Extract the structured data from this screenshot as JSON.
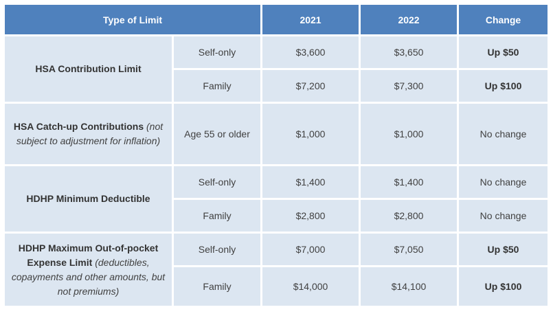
{
  "header": {
    "type_of_limit": "Type of Limit",
    "year1": "2021",
    "year2": "2022",
    "change": "Change"
  },
  "rows": {
    "hsa": {
      "label": "HSA Contribution Limit",
      "self": {
        "coverage": "Self-only",
        "y1": "$3,600",
        "y2": "$3,650",
        "change": "Up $50"
      },
      "family": {
        "coverage": "Family",
        "y1": "$7,200",
        "y2": "$7,300",
        "change": "Up $100"
      }
    },
    "catchup": {
      "label_bold": "HSA Catch-up Contributions",
      "label_note": "(not subject to adjustment for inflation)",
      "coverage": "Age 55 or older",
      "y1": "$1,000",
      "y2": "$1,000",
      "change": "No change"
    },
    "deductible": {
      "label": "HDHP Minimum Deductible",
      "self": {
        "coverage": "Self-only",
        "y1": "$1,400",
        "y2": "$1,400",
        "change": "No change"
      },
      "family": {
        "coverage": "Family",
        "y1": "$2,800",
        "y2": "$2,800",
        "change": "No change"
      }
    },
    "oop": {
      "label_bold": "HDHP Maximum Out-of-pocket Expense Limit",
      "label_note": "(deductibles, copayments and other amounts, but not premiums)",
      "self": {
        "coverage": "Self-only",
        "y1": "$7,000",
        "y2": "$7,050",
        "change": "Up $50"
      },
      "family": {
        "coverage": "Family",
        "y1": "$14,000",
        "y2": "$14,100",
        "change": "Up $100"
      }
    }
  }
}
